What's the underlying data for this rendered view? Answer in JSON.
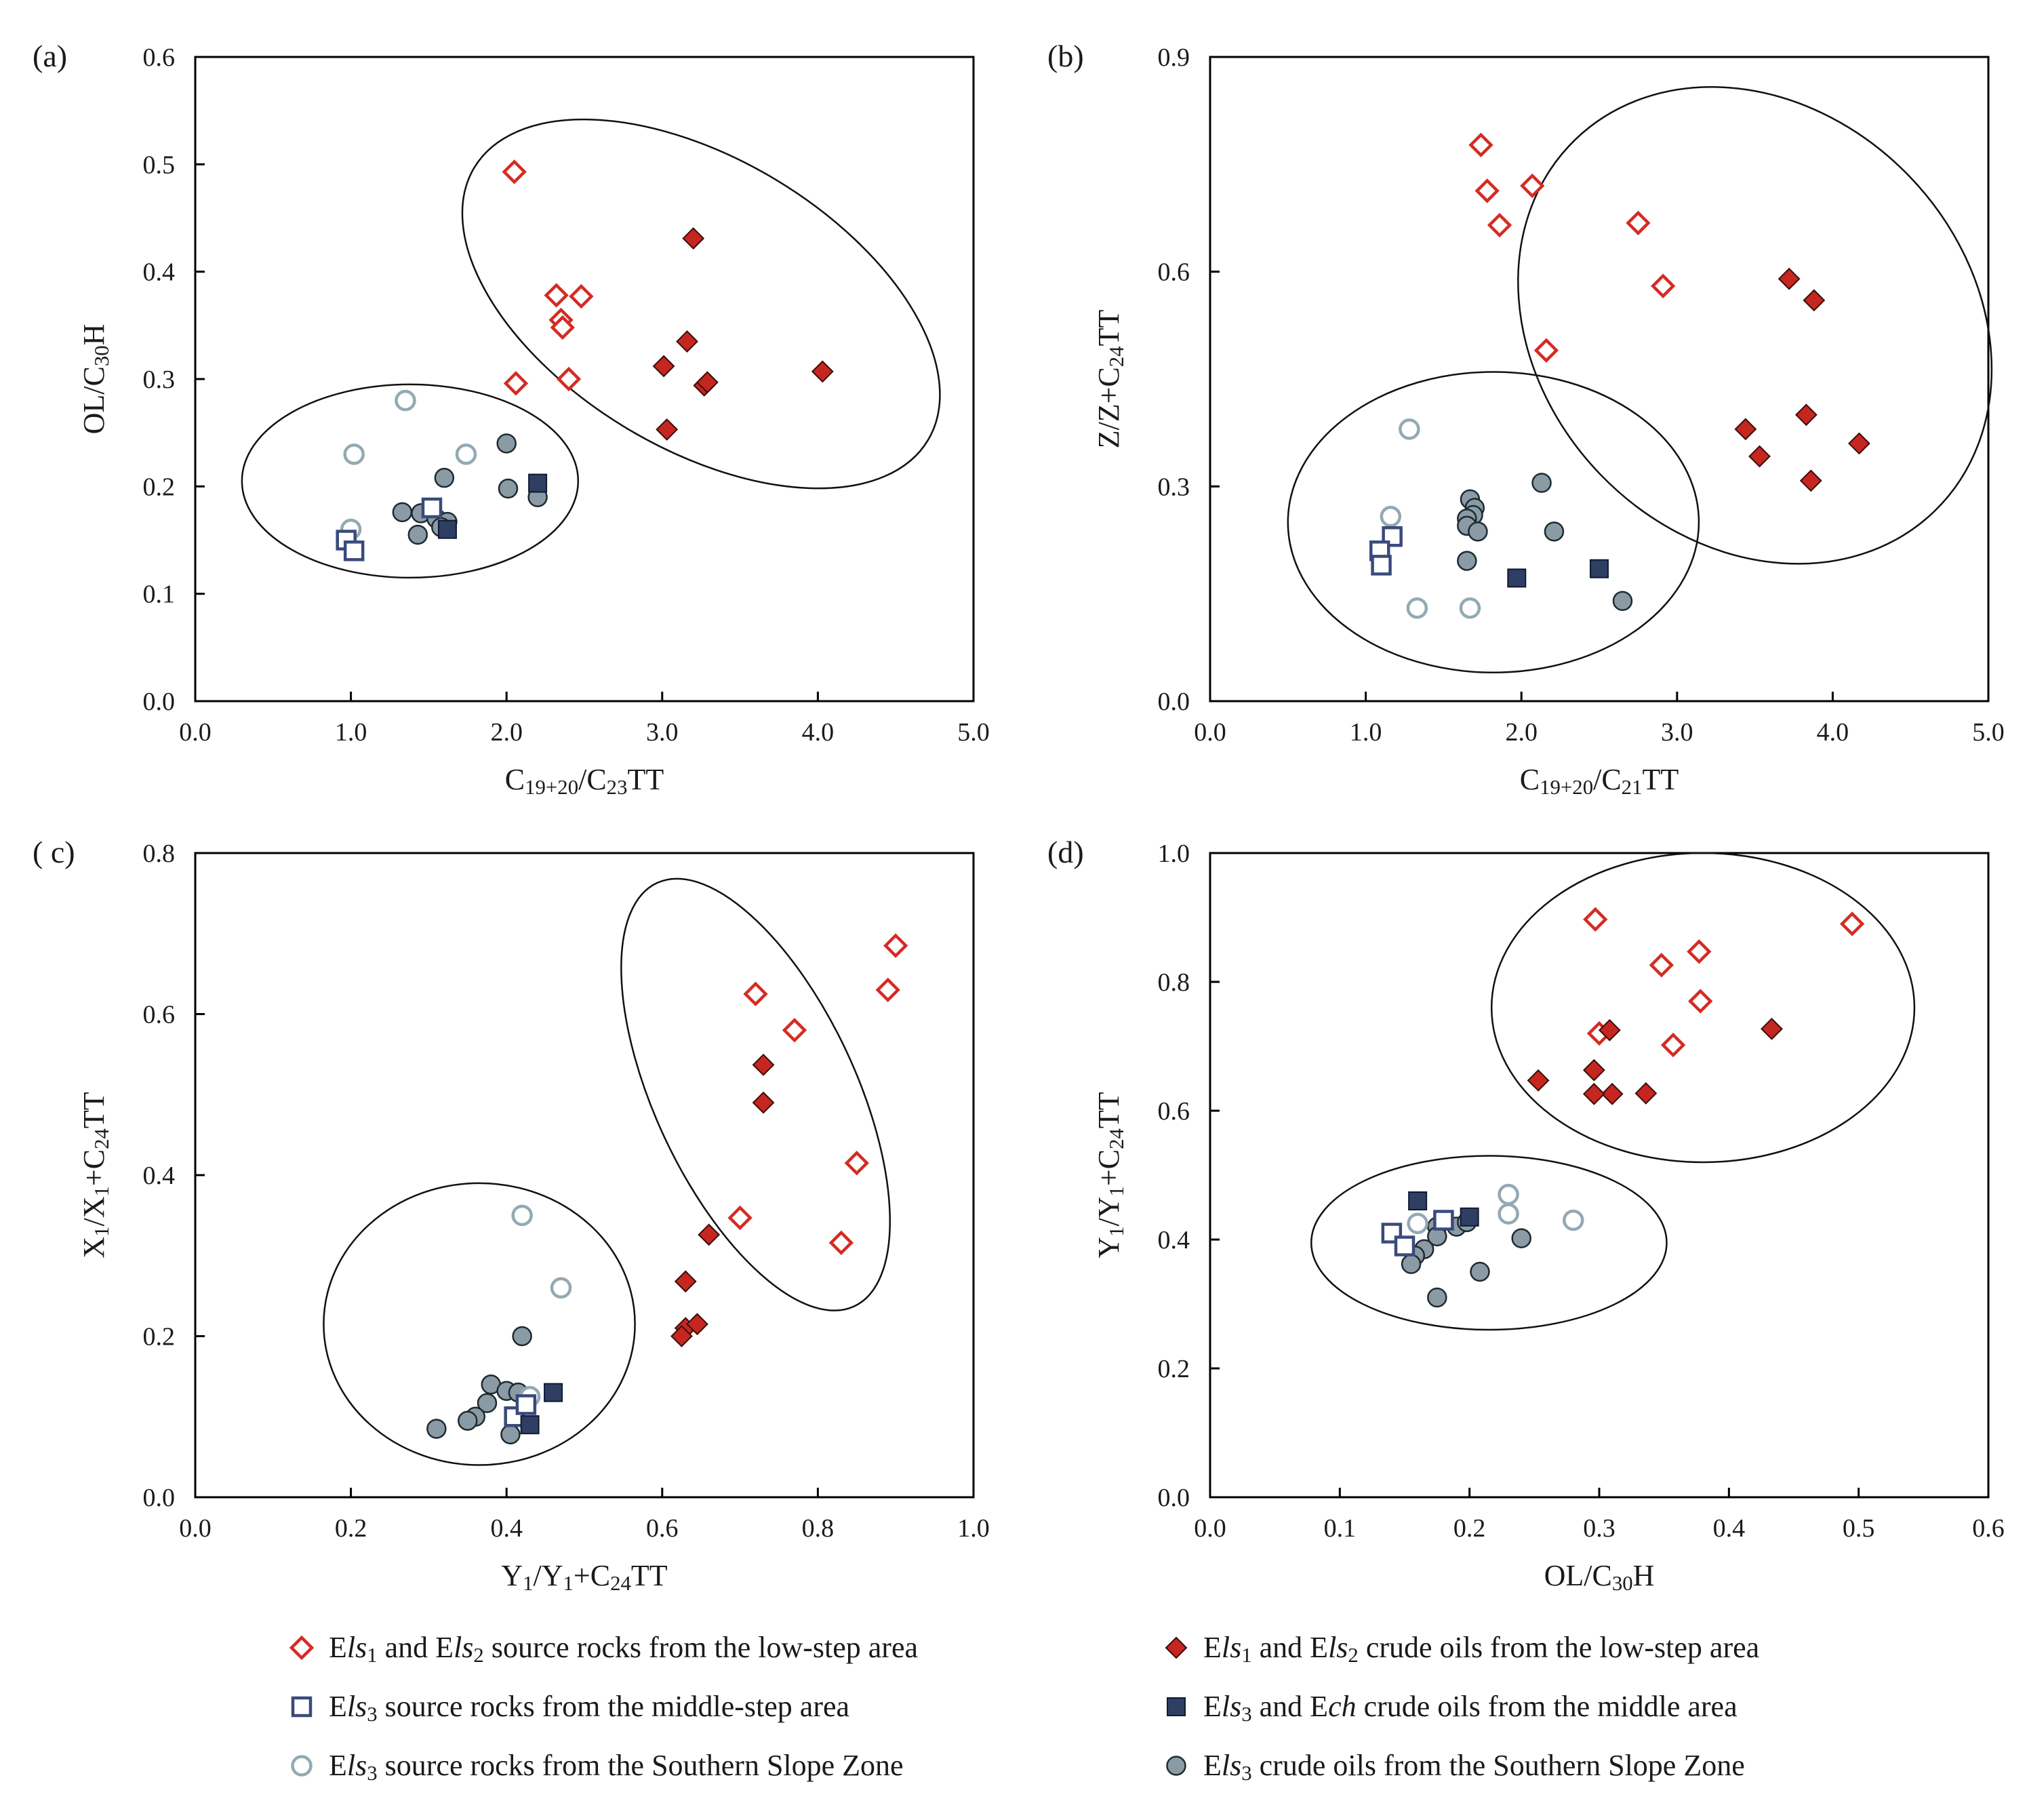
{
  "colors": {
    "red": "#d42b24",
    "red_fill": "#c62620",
    "navy": "#3a4a7c",
    "navy_fill": "#2f3e63",
    "teal_stroke": "#93a9b4",
    "grey_fill": "#8a9ba6"
  },
  "series_defs": [
    {
      "key": "ls12_rock",
      "marker": "diamond-open"
    },
    {
      "key": "ls12_oil",
      "marker": "diamond-filled"
    },
    {
      "key": "ls3_rock_mid",
      "marker": "square-open"
    },
    {
      "key": "ls3_oil_mid",
      "marker": "square-filled"
    },
    {
      "key": "ls3_rock_ssz",
      "marker": "circle-open"
    },
    {
      "key": "ls3_oil_ssz",
      "marker": "circle-filled"
    }
  ],
  "legend": [
    {
      "key": "ls12_rock",
      "parts": [
        [
          "E",
          ""
        ],
        [
          "ls",
          "i"
        ],
        [
          "1",
          "sub"
        ],
        [
          " and E",
          ""
        ],
        [
          "ls",
          "i"
        ],
        [
          "2",
          "sub"
        ],
        [
          " source rocks from the low-step area",
          ""
        ]
      ]
    },
    {
      "key": "ls12_oil",
      "parts": [
        [
          "E",
          ""
        ],
        [
          "ls",
          "i"
        ],
        [
          "1",
          "sub"
        ],
        [
          " and E",
          ""
        ],
        [
          "ls",
          "i"
        ],
        [
          "2",
          "sub"
        ],
        [
          " crude oils from the low-step area",
          ""
        ]
      ]
    },
    {
      "key": "ls3_rock_mid",
      "parts": [
        [
          "E",
          ""
        ],
        [
          "ls",
          "i"
        ],
        [
          "3",
          "sub"
        ],
        [
          " source rocks from the middle-step area",
          ""
        ]
      ]
    },
    {
      "key": "ls3_oil_mid",
      "parts": [
        [
          "E",
          ""
        ],
        [
          "ls",
          "i"
        ],
        [
          "3",
          "sub"
        ],
        [
          " and E",
          ""
        ],
        [
          "ch",
          "i"
        ],
        [
          " crude oils from the middle area",
          ""
        ]
      ]
    },
    {
      "key": "ls3_rock_ssz",
      "parts": [
        [
          "E",
          ""
        ],
        [
          "ls",
          "i"
        ],
        [
          "3",
          "sub"
        ],
        [
          " source rocks from the Southern Slope Zone",
          ""
        ]
      ]
    },
    {
      "key": "ls3_oil_ssz",
      "parts": [
        [
          "E",
          ""
        ],
        [
          "ls",
          "i"
        ],
        [
          "3",
          "sub"
        ],
        [
          " crude oils from the Southern Slope Zone",
          ""
        ]
      ]
    }
  ],
  "chart_data": [
    {
      "type": "scatter",
      "panel_label": "(a)",
      "xlabel": [
        [
          "C",
          ""
        ],
        [
          "19+20",
          "sub"
        ],
        [
          "/C",
          ""
        ],
        [
          "23",
          "sub"
        ],
        [
          "TT",
          ""
        ]
      ],
      "ylabel": [
        [
          "OL/C",
          ""
        ],
        [
          "30",
          "sub"
        ],
        [
          "H",
          ""
        ]
      ],
      "xlim": [
        0,
        5
      ],
      "ylim": [
        0,
        0.6
      ],
      "xticks": [
        "0.0",
        "1.0",
        "2.0",
        "3.0",
        "4.0",
        "5.0"
      ],
      "yticks": [
        "0.0",
        "0.1",
        "0.2",
        "0.3",
        "0.4",
        "0.5",
        "0.6"
      ],
      "grid": false,
      "series": {
        "ls12_rock": [
          [
            2.05,
            0.493
          ],
          [
            2.32,
            0.378
          ],
          [
            2.48,
            0.377
          ],
          [
            2.35,
            0.355
          ],
          [
            2.36,
            0.348
          ],
          [
            2.06,
            0.296
          ],
          [
            2.4,
            0.3
          ]
        ],
        "ls12_oil": [
          [
            3.2,
            0.431
          ],
          [
            3.16,
            0.335
          ],
          [
            3.01,
            0.312
          ],
          [
            3.27,
            0.294
          ],
          [
            3.29,
            0.297
          ],
          [
            3.03,
            0.253
          ],
          [
            4.03,
            0.307
          ]
        ],
        "ls3_rock_mid": [
          [
            1.52,
            0.18
          ],
          [
            0.97,
            0.15
          ],
          [
            1.02,
            0.14
          ]
        ],
        "ls3_oil_mid": [
          [
            2.2,
            0.203
          ],
          [
            1.62,
            0.16
          ]
        ],
        "ls3_rock_ssz": [
          [
            1.35,
            0.28
          ],
          [
            1.02,
            0.23
          ],
          [
            1.74,
            0.23
          ],
          [
            1.0,
            0.16
          ]
        ],
        "ls3_oil_ssz": [
          [
            2.0,
            0.24
          ],
          [
            1.6,
            0.208
          ],
          [
            2.01,
            0.198
          ],
          [
            2.2,
            0.19
          ],
          [
            1.33,
            0.176
          ],
          [
            1.45,
            0.175
          ],
          [
            1.55,
            0.17
          ],
          [
            1.62,
            0.167
          ],
          [
            1.58,
            0.162
          ],
          [
            1.43,
            0.155
          ]
        ]
      },
      "ellipses": [
        {
          "cx": 3.25,
          "cy": 0.37,
          "rx": 1.7,
          "ry": 0.135,
          "rotate": 31
        },
        {
          "cx": 1.38,
          "cy": 0.205,
          "rx": 1.08,
          "ry": 0.09,
          "rotate": 0
        }
      ]
    },
    {
      "type": "scatter",
      "panel_label": "(b)",
      "xlabel": [
        [
          "C",
          ""
        ],
        [
          "19+20",
          "sub"
        ],
        [
          "/C",
          ""
        ],
        [
          "21",
          "sub"
        ],
        [
          "TT",
          ""
        ]
      ],
      "ylabel": [
        [
          "Z/Z+C",
          ""
        ],
        [
          "24",
          "sub"
        ],
        [
          "TT",
          ""
        ]
      ],
      "xlim": [
        0,
        5
      ],
      "ylim": [
        0,
        0.9
      ],
      "xticks": [
        "0.0",
        "1.0",
        "2.0",
        "3.0",
        "4.0",
        "5.0"
      ],
      "yticks": [
        "0.0",
        "0.3",
        "0.6",
        "0.9"
      ],
      "grid": false,
      "series": {
        "ls12_rock": [
          [
            1.74,
            0.777
          ],
          [
            1.78,
            0.713
          ],
          [
            2.07,
            0.72
          ],
          [
            1.86,
            0.665
          ],
          [
            2.75,
            0.668
          ],
          [
            2.91,
            0.58
          ],
          [
            2.16,
            0.49
          ]
        ],
        "ls12_oil": [
          [
            3.72,
            0.59
          ],
          [
            3.88,
            0.56
          ],
          [
            3.44,
            0.38
          ],
          [
            3.83,
            0.4
          ],
          [
            3.53,
            0.342
          ],
          [
            4.17,
            0.36
          ],
          [
            3.86,
            0.308
          ]
        ],
        "ls3_rock_mid": [
          [
            1.17,
            0.23
          ],
          [
            1.09,
            0.21
          ],
          [
            1.1,
            0.19
          ]
        ],
        "ls3_oil_mid": [
          [
            1.97,
            0.172
          ],
          [
            2.5,
            0.185
          ]
        ],
        "ls3_rock_ssz": [
          [
            1.28,
            0.38
          ],
          [
            1.16,
            0.258
          ],
          [
            1.33,
            0.13
          ],
          [
            1.67,
            0.13
          ]
        ],
        "ls3_oil_ssz": [
          [
            1.67,
            0.282
          ],
          [
            1.7,
            0.27
          ],
          [
            1.69,
            0.26
          ],
          [
            1.65,
            0.255
          ],
          [
            1.65,
            0.245
          ],
          [
            1.72,
            0.237
          ],
          [
            2.13,
            0.305
          ],
          [
            2.21,
            0.237
          ],
          [
            1.65,
            0.196
          ],
          [
            2.65,
            0.14
          ]
        ]
      },
      "ellipses": [
        {
          "cx": 3.5,
          "cy": 0.525,
          "rx": 1.66,
          "ry": 0.3,
          "rotate": 46
        },
        {
          "cx": 1.82,
          "cy": 0.25,
          "rx": 1.32,
          "ry": 0.21,
          "rotate": 0
        }
      ]
    },
    {
      "type": "scatter",
      "panel_label": "( c)",
      "xlabel": [
        [
          "Y",
          ""
        ],
        [
          "1",
          "sub"
        ],
        [
          "/Y",
          ""
        ],
        [
          "1",
          "sub"
        ],
        [
          "+C",
          ""
        ],
        [
          "24",
          "sub"
        ],
        [
          "TT",
          ""
        ]
      ],
      "ylabel": [
        [
          "X",
          ""
        ],
        [
          "1",
          "sub"
        ],
        [
          "/X",
          ""
        ],
        [
          "1",
          "sub"
        ],
        [
          "+C",
          ""
        ],
        [
          "24",
          "sub"
        ],
        [
          "TT",
          ""
        ]
      ],
      "xlim": [
        0,
        1.0
      ],
      "ylim": [
        0,
        0.8
      ],
      "xticks": [
        "0.0",
        "0.2",
        "0.4",
        "0.6",
        "0.8",
        "1.0"
      ],
      "yticks": [
        "0.0",
        "0.2",
        "0.4",
        "0.6",
        "0.8"
      ],
      "grid": false,
      "series": {
        "ls12_rock": [
          [
            0.9,
            0.685
          ],
          [
            0.72,
            0.625
          ],
          [
            0.89,
            0.63
          ],
          [
            0.77,
            0.58
          ],
          [
            0.85,
            0.415
          ],
          [
            0.7,
            0.347
          ],
          [
            0.83,
            0.316
          ]
        ],
        "ls12_oil": [
          [
            0.73,
            0.537
          ],
          [
            0.73,
            0.49
          ],
          [
            0.66,
            0.326
          ],
          [
            0.63,
            0.268
          ],
          [
            0.63,
            0.21
          ],
          [
            0.645,
            0.215
          ],
          [
            0.625,
            0.2
          ]
        ],
        "ls3_rock_mid": [
          [
            0.41,
            0.1
          ],
          [
            0.425,
            0.115
          ]
        ],
        "ls3_oil_mid": [
          [
            0.46,
            0.13
          ],
          [
            0.43,
            0.09
          ]
        ],
        "ls3_rock_ssz": [
          [
            0.42,
            0.35
          ],
          [
            0.47,
            0.26
          ],
          [
            0.43,
            0.125
          ]
        ],
        "ls3_oil_ssz": [
          [
            0.42,
            0.2
          ],
          [
            0.38,
            0.14
          ],
          [
            0.4,
            0.132
          ],
          [
            0.415,
            0.13
          ],
          [
            0.375,
            0.117
          ],
          [
            0.36,
            0.1
          ],
          [
            0.35,
            0.095
          ],
          [
            0.31,
            0.085
          ],
          [
            0.405,
            0.078
          ]
        ]
      },
      "ellipses": [
        {
          "cx": 0.72,
          "cy": 0.5,
          "rx": 0.3,
          "ry": 0.125,
          "rotate": 65
        },
        {
          "cx": 0.365,
          "cy": 0.215,
          "rx": 0.2,
          "ry": 0.175,
          "rotate": 0
        }
      ]
    },
    {
      "type": "scatter",
      "panel_label": "(d)",
      "xlabel": [
        [
          "OL/C",
          ""
        ],
        [
          "30",
          "sub"
        ],
        [
          "H",
          ""
        ]
      ],
      "ylabel": [
        [
          "Y",
          ""
        ],
        [
          "1",
          "sub"
        ],
        [
          "/Y",
          ""
        ],
        [
          "1",
          "sub"
        ],
        [
          "+C",
          ""
        ],
        [
          "24",
          "sub"
        ],
        [
          "TT",
          ""
        ]
      ],
      "xlim": [
        0,
        0.6
      ],
      "ylim": [
        0,
        1.0
      ],
      "xticks": [
        "0.0",
        "0.1",
        "0.2",
        "0.3",
        "0.4",
        "0.5",
        "0.6"
      ],
      "yticks": [
        "0.0",
        "0.2",
        "0.4",
        "0.6",
        "0.8",
        "1.0"
      ],
      "grid": false,
      "series": {
        "ls12_rock": [
          [
            0.297,
            0.897
          ],
          [
            0.495,
            0.89
          ],
          [
            0.377,
            0.847
          ],
          [
            0.348,
            0.826
          ],
          [
            0.378,
            0.77
          ],
          [
            0.3,
            0.72
          ],
          [
            0.357,
            0.702
          ]
        ],
        "ls12_oil": [
          [
            0.433,
            0.727
          ],
          [
            0.308,
            0.725
          ],
          [
            0.253,
            0.647
          ],
          [
            0.296,
            0.663
          ],
          [
            0.31,
            0.626
          ],
          [
            0.296,
            0.626
          ],
          [
            0.336,
            0.627
          ]
        ],
        "ls3_rock_mid": [
          [
            0.14,
            0.41
          ],
          [
            0.15,
            0.39
          ],
          [
            0.18,
            0.43
          ]
        ],
        "ls3_oil_mid": [
          [
            0.16,
            0.46
          ],
          [
            0.2,
            0.435
          ]
        ],
        "ls3_rock_ssz": [
          [
            0.23,
            0.47
          ],
          [
            0.23,
            0.44
          ],
          [
            0.28,
            0.43
          ],
          [
            0.16,
            0.425
          ]
        ],
        "ls3_oil_ssz": [
          [
            0.175,
            0.42
          ],
          [
            0.19,
            0.42
          ],
          [
            0.198,
            0.427
          ],
          [
            0.24,
            0.402
          ],
          [
            0.175,
            0.405
          ],
          [
            0.165,
            0.385
          ],
          [
            0.158,
            0.375
          ],
          [
            0.155,
            0.362
          ],
          [
            0.208,
            0.35
          ],
          [
            0.175,
            0.31
          ]
        ]
      },
      "ellipses": [
        {
          "cx": 0.38,
          "cy": 0.76,
          "rx": 0.163,
          "ry": 0.24,
          "rotate": 0
        },
        {
          "cx": 0.215,
          "cy": 0.395,
          "rx": 0.137,
          "ry": 0.135,
          "rotate": 0
        }
      ]
    }
  ]
}
